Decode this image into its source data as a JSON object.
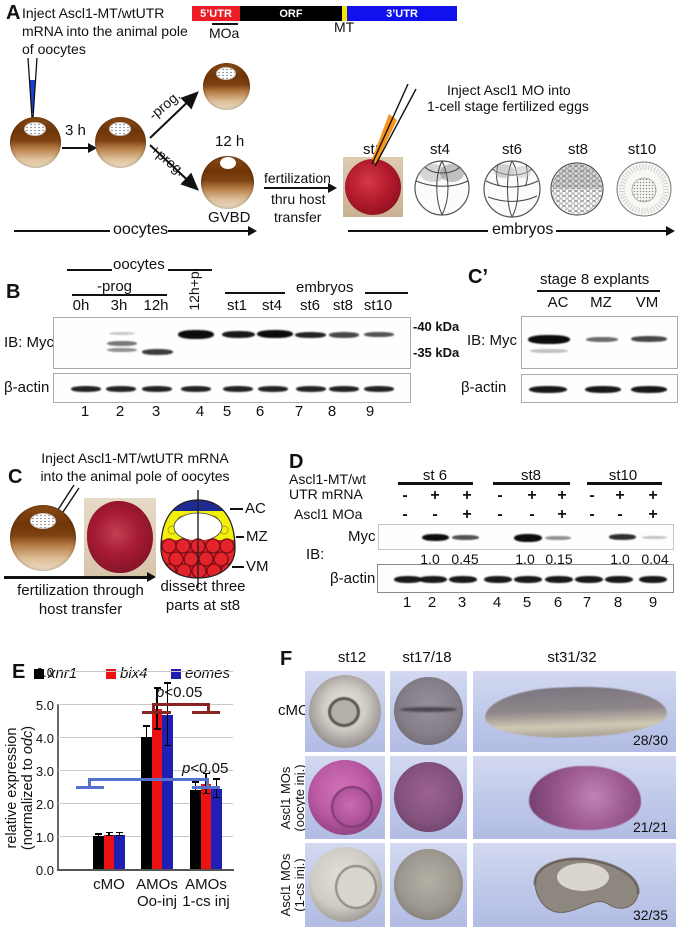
{
  "panelA": {
    "label": "A",
    "intro": "Inject Ascl1-MT/wtUTR mRNA into the animal pole of oocytes",
    "construct": {
      "segments": [
        {
          "name": "utr5",
          "label": "5’UTR",
          "color": "#ec1c24",
          "text_color": "#ffffff"
        },
        {
          "name": "orf",
          "label": "ORF",
          "color": "#000000",
          "text_color": "#ffffff"
        },
        {
          "name": "mt-tag",
          "label": "",
          "color": "#f5e400",
          "text_color": "#000000"
        },
        {
          "name": "utr3",
          "label": "3’UTR",
          "color": "#1011ee",
          "text_color": "#ffffff"
        }
      ],
      "moa_label": "MOa",
      "mt_label": "MT"
    },
    "time_3h": "3 h",
    "minus_prog": "-prog.",
    "plus_prog": "+prog.",
    "time_12h": "12 h",
    "gvbd": "GVBD",
    "fert_line1": "fertilization",
    "fert_line2": "thru host",
    "fert_line3": "transfer",
    "oocytes_axis": "oocytes",
    "inject_line1": "Inject Ascl1 MO into",
    "inject_line2": "1-cell stage fertilized eggs",
    "stages": [
      "st1",
      "st4",
      "st6",
      "st8",
      "st10"
    ],
    "embryos_axis": "embryos"
  },
  "panelB": {
    "label": "B",
    "group_oocytes": "oocytes",
    "sub_minus_prog": "-prog",
    "cols_oocytes": [
      "0h",
      "3h",
      "12h"
    ],
    "col_rotated": "12h+p",
    "group_embryos": "embryos",
    "cols_embryos": [
      "st1",
      "st4",
      "st6",
      "st8",
      "st10"
    ],
    "ib_label": "IB: Myc",
    "marker_40": "-40 kDa",
    "marker_35": "-35 kDa",
    "actin_label": "β-actin",
    "lanes": [
      "1",
      "2",
      "3",
      "4",
      "5",
      "6",
      "7",
      "8",
      "9"
    ]
  },
  "panelCprime": {
    "label": "C’",
    "header": "stage 8 explants",
    "cols": [
      "AC",
      "MZ",
      "VM"
    ],
    "ib_label": "IB: Myc",
    "actin_label": "β-actin"
  },
  "panelC": {
    "label": "C",
    "caption_line1": "Inject Ascl1-MT/wtUTR mRNA",
    "caption_line2": "into the animal pole of oocytes",
    "regions": [
      "AC",
      "MZ",
      "VM"
    ],
    "arrow_line1": "fertilization through",
    "arrow_line2": "host transfer",
    "dissect_line1": "dissect three",
    "dissect_line2": "parts at st8"
  },
  "panelD": {
    "label": "D",
    "row1_line1": "Ascl1-MT/wt",
    "row1_line2": "UTR mRNA",
    "row2_label": "Ascl1 MOa",
    "groups": [
      "st 6",
      "st8",
      "st10"
    ],
    "mrna_signs": [
      "-",
      "+",
      "+",
      "-",
      "+",
      "+",
      "-",
      "+",
      "+"
    ],
    "moa_signs": [
      "-",
      "-",
      "+",
      "-",
      "-",
      "+",
      "-",
      "-",
      "+"
    ],
    "ib_label": "IB:",
    "myc_label": "Myc",
    "quants": [
      "1.0",
      "0.45",
      "1.0",
      "0.15",
      "1.0",
      "0.04"
    ],
    "actin_label": "β-actin",
    "lanes": [
      "1",
      "2",
      "3",
      "4",
      "5",
      "6",
      "7",
      "8",
      "9"
    ]
  },
  "panelE": {
    "label": "E",
    "sig_top": "p<0.05",
    "sig_mid": "p<0.05",
    "ylabel_line1": "relative expression",
    "ylabel_pre": "(normalized to ",
    "ylabel_gene": "odc",
    "ylabel_post": ")"
  },
  "chart_data": {
    "type": "bar",
    "title": "",
    "categories": [
      "cMO",
      "AMOs Oo-inj",
      "AMOs 1-cs inj"
    ],
    "category_labels": [
      [
        "cMO",
        ""
      ],
      [
        "AMOs",
        "Oo-inj"
      ],
      [
        "AMOs",
        "1-cs inj"
      ]
    ],
    "series": [
      {
        "name": "xnr1",
        "color": "#000000",
        "values": [
          1.02,
          4.02,
          2.42
        ],
        "errors": [
          0.05,
          0.33,
          0.22
        ]
      },
      {
        "name": "bix4",
        "color": "#ee1111",
        "values": [
          1.07,
          4.88,
          2.6
        ],
        "errors": [
          0.05,
          0.62,
          0.3
        ]
      },
      {
        "name": "eomes",
        "color": "#1f1fb4",
        "values": [
          1.07,
          4.7,
          2.45
        ],
        "errors": [
          0.05,
          0.95,
          0.28
        ]
      }
    ],
    "ylabel": "relative expression (normalized to odc)",
    "xlabel": "",
    "ylim": [
      0,
      6.55
    ],
    "yticks": [
      0,
      1,
      2,
      3,
      4,
      5,
      6
    ],
    "grid": true,
    "legend_position": "top",
    "annotations": [
      {
        "text": "p<0.05",
        "bracket_color": "#8b2320",
        "between": [
          "AMOs Oo-inj",
          "AMOs 1-cs inj"
        ],
        "y": 6.0
      },
      {
        "text": "p<0.05",
        "bracket_color": "#5572cf",
        "between": [
          "cMO",
          "AMOs 1-cs inj"
        ],
        "y": 3.4
      }
    ]
  },
  "panelF": {
    "label": "F",
    "col_headers": [
      "st12",
      "st17/18",
      "st31/32"
    ],
    "row1_label": "cMO",
    "row2_line1": "Ascl1 MOs",
    "row2_line2": "(oocyte inj.)",
    "row3_line1": "Ascl1 MOs",
    "row3_line2": "(1-cs inj.)",
    "counts": [
      "28/30",
      "21/21",
      "32/35"
    ]
  }
}
